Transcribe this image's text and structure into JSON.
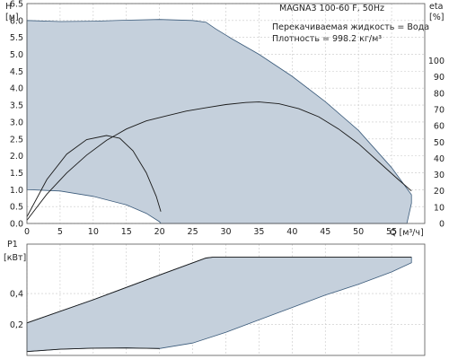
{
  "title": "MAGNA3 100-60 F, 50Hz",
  "notes": [
    "Перекачиваемая жидкость = Вода",
    "Плотность = 998.2 кг/м³"
  ],
  "chart_data": [
    {
      "type": "line",
      "panel": "top",
      "xlabel": "Q [м³/ч]",
      "ylabel_left": "H",
      "ylabel_left_unit": "[м]",
      "ylabel_right": "eta",
      "ylabel_right_unit": "[%]",
      "xlim": [
        0,
        60
      ],
      "ylim": [
        0,
        6.5
      ],
      "ylim_right": [
        0,
        135
      ],
      "x_ticks": [
        0,
        5,
        10,
        15,
        20,
        25,
        30,
        35,
        40,
        45,
        50,
        55
      ],
      "y_ticks": [
        0.0,
        0.5,
        1.0,
        1.5,
        2.0,
        2.5,
        3.0,
        3.5,
        4.0,
        4.5,
        5.0,
        5.5,
        6.0,
        6.5
      ],
      "y_ticks_right": [
        0,
        10,
        20,
        30,
        40,
        50,
        60,
        70,
        80,
        90,
        100
      ],
      "grid": true,
      "operating_range": {
        "upper": [
          [
            0,
            6.0
          ],
          [
            5,
            5.97
          ],
          [
            10,
            5.98
          ],
          [
            15,
            6.01
          ],
          [
            20,
            6.03
          ],
          [
            25,
            6.0
          ],
          [
            27,
            5.95
          ],
          [
            28.5,
            5.75
          ],
          [
            31,
            5.45
          ],
          [
            35,
            5.0
          ],
          [
            40,
            4.35
          ],
          [
            45,
            3.6
          ],
          [
            50,
            2.75
          ],
          [
            55,
            1.65
          ],
          [
            58,
            0.85
          ]
        ],
        "lower": [
          [
            0,
            1.0
          ],
          [
            5,
            0.96
          ],
          [
            10,
            0.8
          ],
          [
            15,
            0.55
          ],
          [
            18,
            0.3
          ],
          [
            20,
            0.05
          ],
          [
            20.2,
            0.0
          ]
        ]
      },
      "series": [
        {
          "axis": "left",
          "points": [
            [
              0,
              0.2
            ],
            [
              3,
              1.3
            ],
            [
              6,
              2.05
            ],
            [
              9,
              2.48
            ],
            [
              12,
              2.6
            ],
            [
              14,
              2.52
            ],
            [
              16,
              2.15
            ],
            [
              18,
              1.5
            ],
            [
              19.5,
              0.8
            ],
            [
              20.2,
              0.35
            ]
          ]
        },
        {
          "axis": "right",
          "points": [
            [
              0,
              2
            ],
            [
              3,
              18
            ],
            [
              6,
              31
            ],
            [
              9,
              42
            ],
            [
              12,
              51
            ],
            [
              15,
              58
            ],
            [
              18,
              63
            ],
            [
              21,
              66
            ],
            [
              24,
              69
            ],
            [
              27,
              71
            ],
            [
              30,
              73
            ],
            [
              33,
              74.3
            ],
            [
              35,
              74.6
            ],
            [
              38,
              73.5
            ],
            [
              41,
              70.5
            ],
            [
              44,
              65.5
            ],
            [
              47,
              58
            ],
            [
              50,
              49
            ],
            [
              53,
              38
            ],
            [
              56,
              27
            ],
            [
              58,
              20
            ]
          ]
        }
      ]
    },
    {
      "type": "area",
      "panel": "bottom",
      "ylabel": "P1",
      "ylabel_unit": "[кВт]",
      "xlim": [
        0,
        60
      ],
      "ylim": [
        0,
        0.72
      ],
      "y_ticks": [
        0.2,
        0.4
      ],
      "y_tick_labels": [
        "0,2",
        "0,4"
      ],
      "grid": true,
      "upper": [
        [
          0,
          0.21
        ],
        [
          10,
          0.36
        ],
        [
          20,
          0.52
        ],
        [
          27,
          0.63
        ],
        [
          28,
          0.635
        ],
        [
          58,
          0.635
        ]
      ],
      "lower": [
        [
          0,
          0.025
        ],
        [
          5,
          0.04
        ],
        [
          10,
          0.047
        ],
        [
          15,
          0.048
        ],
        [
          18,
          0.046
        ],
        [
          20,
          0.045
        ],
        [
          25,
          0.08
        ],
        [
          30,
          0.15
        ],
        [
          35,
          0.23
        ],
        [
          40,
          0.31
        ],
        [
          45,
          0.39
        ],
        [
          50,
          0.46
        ],
        [
          55,
          0.54
        ],
        [
          58,
          0.6
        ]
      ]
    }
  ]
}
